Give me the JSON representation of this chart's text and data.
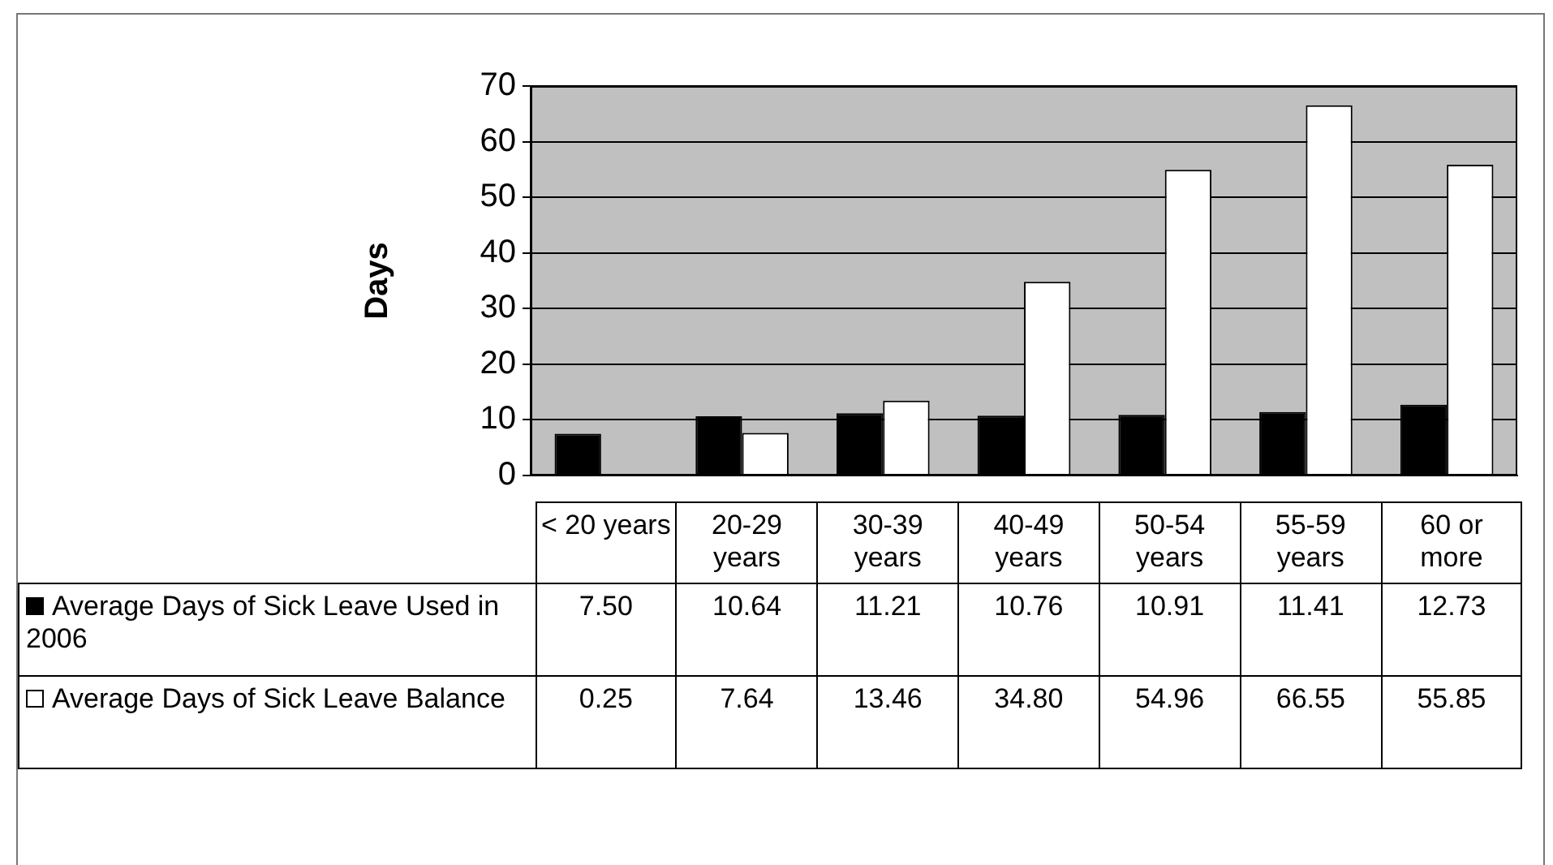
{
  "chart_data": {
    "type": "bar",
    "ylabel": "Days",
    "categories": [
      "< 20 years",
      "20-29 years",
      "30-39 years",
      "40-49 years",
      "50-54 years",
      "55-59 years",
      "60 or more"
    ],
    "series": [
      {
        "name": "Average Days of Sick Leave Used in 2006",
        "color": "#000000",
        "values": [
          7.5,
          10.64,
          11.21,
          10.76,
          10.91,
          11.41,
          12.73
        ],
        "value_labels": [
          "7.50",
          "10.64",
          "11.21",
          "10.76",
          "10.91",
          "11.41",
          "12.73"
        ]
      },
      {
        "name": "Average Days of Sick Leave Balance",
        "color": "#ffffff",
        "values": [
          0.25,
          7.64,
          13.46,
          34.8,
          54.96,
          66.55,
          55.85
        ],
        "value_labels": [
          "0.25",
          "7.64",
          "13.46",
          "34.80",
          "54.96",
          "66.55",
          "55.85"
        ]
      }
    ],
    "ylim": [
      0,
      70
    ],
    "yticks": [
      0,
      10,
      20,
      30,
      40,
      50,
      60,
      70
    ],
    "grid": "y",
    "legend": "bottom"
  }
}
